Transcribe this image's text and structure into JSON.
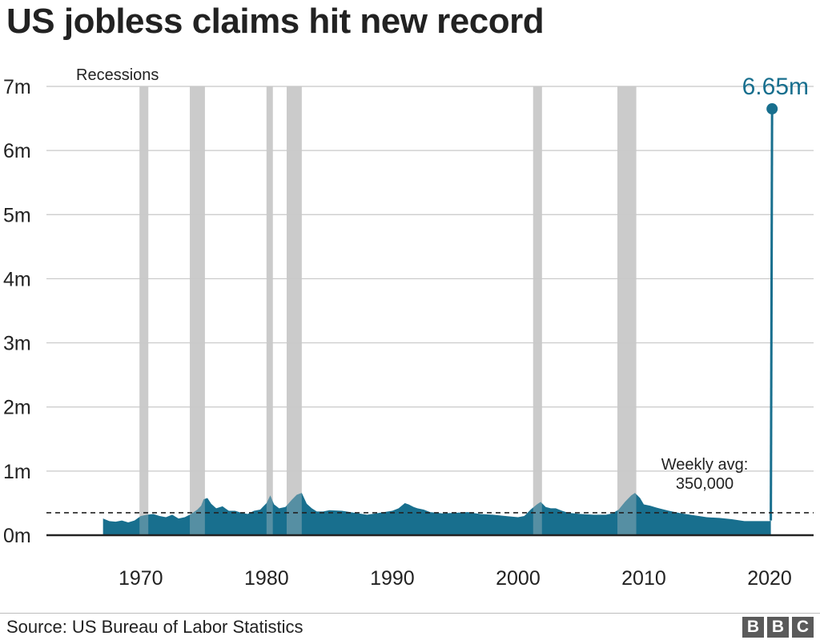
{
  "title": "US jobless claims hit new record",
  "source": "Source: US Bureau of Labor Statistics",
  "logo": [
    "B",
    "B",
    "C"
  ],
  "colors": {
    "series": "#186f8e",
    "recession": "#cbcbcb",
    "grid": "#c8c8c8",
    "axis": "#222222",
    "avg_line": "#222222"
  },
  "chart_data": {
    "type": "area",
    "title": "US jobless claims hit new record",
    "xlabel": "",
    "ylabel": "",
    "xlim": [
      1962.5,
      2023.5
    ],
    "ylim": [
      0,
      7
    ],
    "yticks": [
      0,
      1,
      2,
      3,
      4,
      5,
      6,
      7
    ],
    "ytick_labels": [
      "0m",
      "1m",
      "2m",
      "3m",
      "4m",
      "5m",
      "6m",
      "7m"
    ],
    "xticks": [
      1970,
      1980,
      1990,
      2000,
      2010,
      2020
    ],
    "xtick_labels": [
      "1970",
      "1980",
      "1990",
      "2000",
      "2010",
      "2020"
    ],
    "grid": true,
    "series": [
      {
        "x": [
          1967.0,
          1967.5,
          1968.0,
          1968.5,
          1969.0,
          1969.5,
          1970.0,
          1970.5,
          1971.0,
          1971.5,
          1972.0,
          1972.5,
          1973.0,
          1973.5,
          1974.0,
          1974.5,
          1974.8,
          1975.0,
          1975.3,
          1975.6,
          1976.0,
          1976.5,
          1977.0,
          1977.5,
          1978.0,
          1978.5,
          1979.0,
          1979.5,
          1980.0,
          1980.3,
          1980.6,
          1981.0,
          1981.5,
          1982.0,
          1982.4,
          1982.8,
          1983.2,
          1983.6,
          1984.0,
          1984.5,
          1985.0,
          1986.0,
          1987.0,
          1988.0,
          1989.0,
          1990.0,
          1990.5,
          1991.0,
          1991.3,
          1991.7,
          1992.0,
          1992.5,
          1993.0,
          1994.0,
          1995.0,
          1996.0,
          1997.0,
          1998.0,
          1999.0,
          2000.0,
          2000.5,
          2001.0,
          2001.5,
          2001.8,
          2002.2,
          2002.6,
          2003.0,
          2003.5,
          2004.0,
          2005.0,
          2006.0,
          2007.0,
          2007.5,
          2008.0,
          2008.5,
          2009.0,
          2009.3,
          2009.7,
          2010.0,
          2010.5,
          2011.0,
          2012.0,
          2013.0,
          2014.0,
          2015.0,
          2016.0,
          2017.0,
          2018.0,
          2019.0,
          2019.5,
          2020.0,
          2020.1,
          2020.2
        ],
        "y": [
          0.26,
          0.22,
          0.21,
          0.23,
          0.2,
          0.23,
          0.3,
          0.32,
          0.33,
          0.3,
          0.28,
          0.32,
          0.26,
          0.28,
          0.33,
          0.4,
          0.46,
          0.56,
          0.58,
          0.49,
          0.42,
          0.45,
          0.38,
          0.38,
          0.35,
          0.33,
          0.38,
          0.4,
          0.5,
          0.62,
          0.48,
          0.42,
          0.44,
          0.55,
          0.63,
          0.66,
          0.49,
          0.42,
          0.37,
          0.37,
          0.39,
          0.38,
          0.35,
          0.32,
          0.35,
          0.38,
          0.42,
          0.5,
          0.48,
          0.44,
          0.42,
          0.4,
          0.36,
          0.34,
          0.35,
          0.36,
          0.33,
          0.32,
          0.3,
          0.28,
          0.3,
          0.4,
          0.48,
          0.52,
          0.44,
          0.42,
          0.42,
          0.38,
          0.35,
          0.33,
          0.32,
          0.32,
          0.34,
          0.4,
          0.52,
          0.62,
          0.66,
          0.58,
          0.48,
          0.46,
          0.43,
          0.38,
          0.34,
          0.31,
          0.28,
          0.27,
          0.25,
          0.22,
          0.22,
          0.22,
          0.22,
          0.23,
          6.65
        ]
      }
    ],
    "recessions": [
      [
        1969.9,
        1970.6
      ],
      [
        1973.9,
        1975.1
      ],
      [
        1980.0,
        1980.5
      ],
      [
        1981.6,
        1982.8
      ],
      [
        2001.2,
        2001.9
      ],
      [
        2007.9,
        2009.4
      ]
    ],
    "annotations": {
      "recessions_label": "Recessions",
      "peak_label": "6.65m",
      "peak": {
        "x": 2020.2,
        "y": 6.65
      },
      "avg_label_line1": "Weekly avg:",
      "avg_label_line2": "350,000",
      "avg_value": 0.35
    }
  }
}
